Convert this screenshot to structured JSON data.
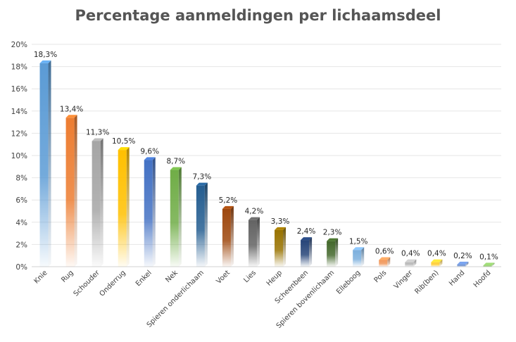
{
  "chart_data": {
    "type": "bar",
    "title": "Percentage aanmeldingen per lichaamsdeel",
    "xlabel": "",
    "ylabel": "",
    "ylim": [
      0,
      20
    ],
    "yticks": [
      "0%",
      "2%",
      "4%",
      "6%",
      "8%",
      "10%",
      "12%",
      "14%",
      "16%",
      "18%",
      "20%"
    ],
    "grid": true,
    "legend": "none",
    "categories": [
      "Knie",
      "Rug",
      "Schouder",
      "Onderrug",
      "Enkel",
      "Nek",
      "Spieren onderlichaam",
      "Voet",
      "Lies",
      "Heup",
      "Scheenbeen",
      "Spieren bovenlichaam",
      "Elleboog",
      "Pols",
      "Vinger",
      "Rib(ben)",
      "Hand",
      "Hoofd"
    ],
    "values": [
      18.3,
      13.4,
      11.3,
      10.5,
      9.6,
      8.7,
      7.3,
      5.2,
      4.2,
      3.3,
      2.4,
      2.3,
      1.5,
      0.6,
      0.4,
      0.4,
      0.2,
      0.1
    ],
    "data_labels": [
      "18,3%",
      "13,4%",
      "11,3%",
      "10,5%",
      "9,6%",
      "8,7%",
      "7,3%",
      "5,2%",
      "4,2%",
      "3,3%",
      "2,4%",
      "2,3%",
      "1,5%",
      "0,6%",
      "0,4%",
      "0,4%",
      "0,2%",
      "0,1%"
    ],
    "colors": [
      "#5b9bd5",
      "#ed7d31",
      "#a5a5a5",
      "#ffc000",
      "#4472c4",
      "#70ad47",
      "#255e91",
      "#9e480e",
      "#636363",
      "#997300",
      "#264478",
      "#43682b",
      "#7cafdd",
      "#f1975a",
      "#b7b7b7",
      "#ffcd33",
      "#698ed0",
      "#8cc168"
    ]
  }
}
